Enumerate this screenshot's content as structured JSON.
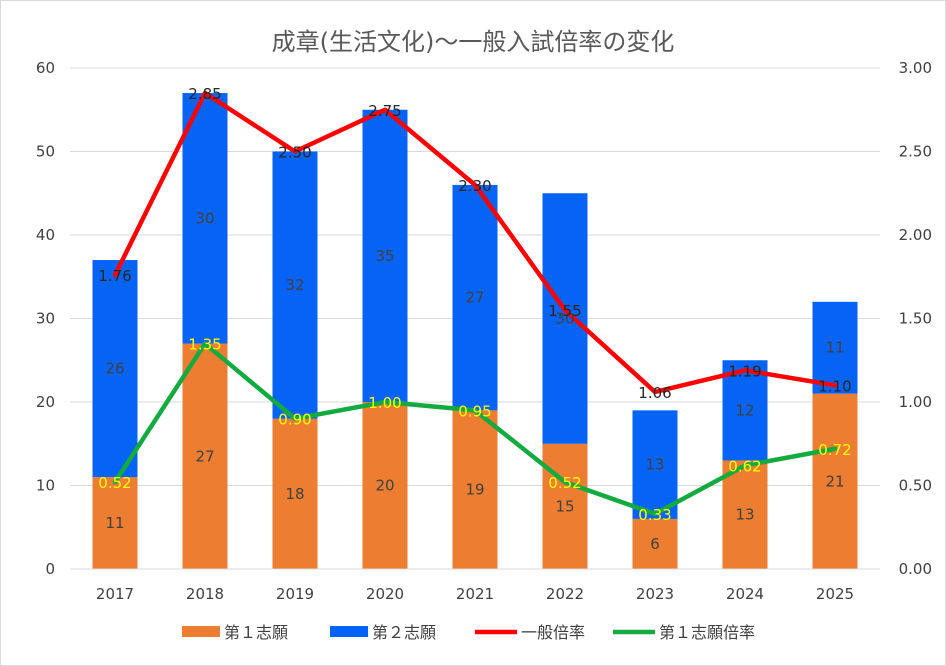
{
  "chart_data": {
    "type": "bar",
    "title": "成章(生活文化)～一般入試倍率の変化",
    "categories": [
      "2017",
      "2018",
      "2019",
      "2020",
      "2021",
      "2022",
      "2023",
      "2024",
      "2025"
    ],
    "stacked": true,
    "series": [
      {
        "name": "第１志願",
        "type": "bar",
        "axis": "left",
        "color": "#ed7d31",
        "values": [
          11,
          27,
          18,
          20,
          19,
          15,
          6,
          13,
          21
        ]
      },
      {
        "name": "第２志願",
        "type": "bar",
        "axis": "left",
        "color": "#0563f5",
        "values": [
          26,
          30,
          32,
          35,
          27,
          30,
          13,
          12,
          11
        ]
      },
      {
        "name": "一般倍率",
        "type": "line",
        "axis": "right",
        "color": "#ff0000",
        "values": [
          "1.76",
          "2.85",
          "2.50",
          "2.75",
          "2.30",
          "1.55",
          "1.06",
          "1.19",
          "1.10"
        ]
      },
      {
        "name": "第１志願倍率",
        "type": "line",
        "axis": "right",
        "color": "#13ab3f",
        "values": [
          "0.52",
          "1.35",
          "0.90",
          "1.00",
          "0.95",
          "0.52",
          "0.33",
          "0.62",
          "0.72"
        ]
      }
    ],
    "y_left": {
      "min": 0,
      "max": 60,
      "ticks": [
        "0",
        "10",
        "20",
        "30",
        "40",
        "50",
        "60"
      ]
    },
    "y_right": {
      "min": 0,
      "max": 3,
      "ticks": [
        "0.00",
        "0.50",
        "1.00",
        "1.50",
        "2.00",
        "2.50",
        "3.00"
      ]
    },
    "grid": true,
    "legend_position": "bottom"
  }
}
